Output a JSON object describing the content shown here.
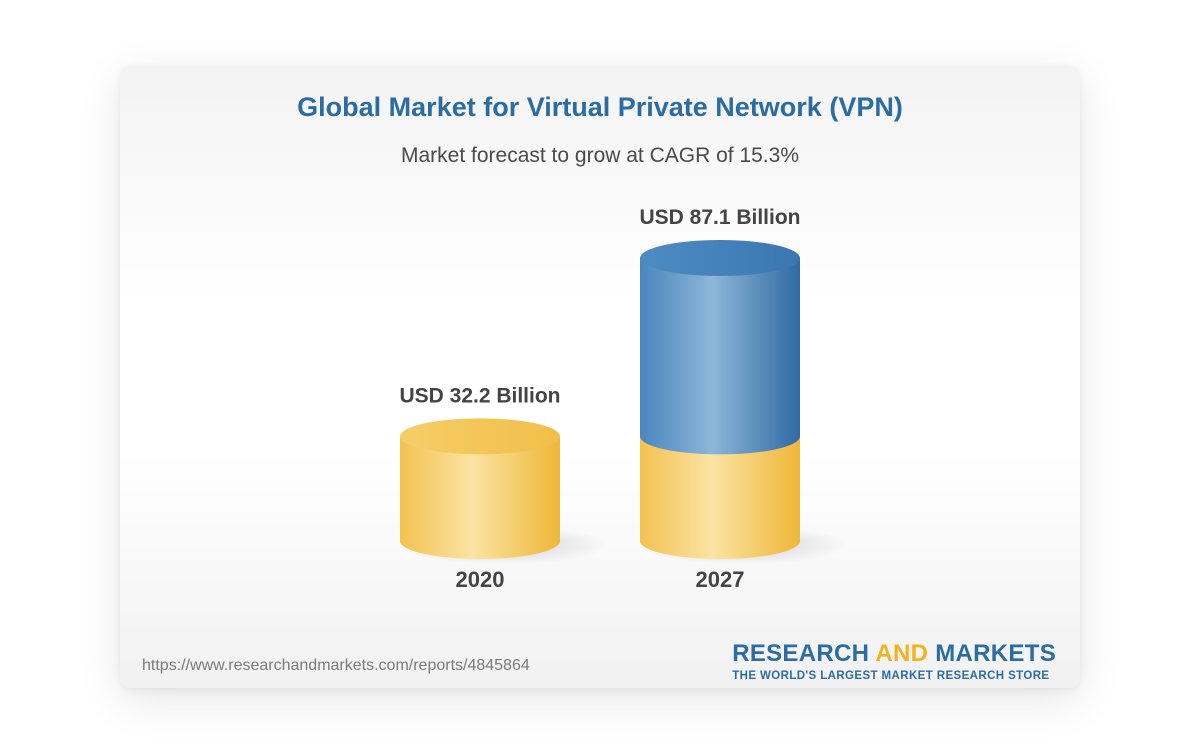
{
  "chart_data": {
    "type": "bar",
    "title": "Global Market for Virtual Private Network (VPN)",
    "subtitle": "Market forecast to grow at CAGR of 15.3%",
    "categories": [
      "2020",
      "2027"
    ],
    "values": [
      32.2,
      87.1
    ],
    "value_labels": [
      "USD 32.2 Billion",
      "USD 87.1 Billion"
    ],
    "unit": "USD Billion",
    "colors": {
      "base": "#f5c95a",
      "growth": "#3f7db4",
      "title": "#2b6ca3"
    }
  },
  "footer": {
    "url": "https://www.researchandmarkets.com/reports/4845864"
  },
  "logo": {
    "word1": "RESEARCH ",
    "word2": "AND",
    "word3": " MARKETS",
    "tagline": "THE WORLD'S LARGEST MARKET RESEARCH STORE"
  }
}
